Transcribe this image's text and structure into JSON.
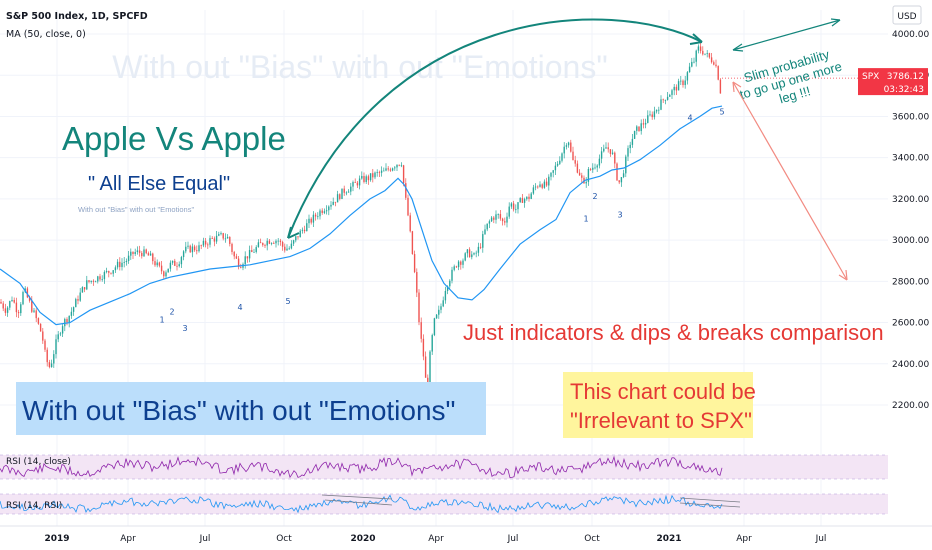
{
  "chart_data": {
    "type": "line",
    "title": "S&P 500 Index, 1D, SPCFD",
    "indicator": "MA (50, close, 0)",
    "currency": "USD",
    "y_ticks": [
      2200,
      2400,
      2600,
      2800,
      3000,
      3200,
      3400,
      3600,
      3800,
      4000
    ],
    "y_tick_labels": [
      "2200.00",
      "2400.00",
      "2600.00",
      "2800.00",
      "3000.00",
      "3200.00",
      "3400.00",
      "3600.00",
      "3800.00",
      "4000.00"
    ],
    "ylim": [
      2100,
      4140
    ],
    "x_ticks": [
      {
        "label": "2019",
        "bold": true
      },
      {
        "label": "Apr",
        "bold": false
      },
      {
        "label": "Jul",
        "bold": false
      },
      {
        "label": "Oct",
        "bold": false
      },
      {
        "label": "2020",
        "bold": true
      },
      {
        "label": "Apr",
        "bold": false
      },
      {
        "label": "Jul",
        "bold": false
      },
      {
        "label": "Oct",
        "bold": false
      },
      {
        "label": "2021",
        "bold": true
      },
      {
        "label": "Apr",
        "bold": false
      },
      {
        "label": "Jul",
        "bold": false
      }
    ],
    "price_path": [
      [
        0,
        2700
      ],
      [
        6,
        2660
      ],
      [
        12,
        2720
      ],
      [
        18,
        2650
      ],
      [
        24,
        2760
      ],
      [
        30,
        2690
      ],
      [
        36,
        2620
      ],
      [
        42,
        2540
      ],
      [
        46,
        2420
      ],
      [
        50,
        2380
      ],
      [
        56,
        2500
      ],
      [
        62,
        2590
      ],
      [
        70,
        2640
      ],
      [
        78,
        2720
      ],
      [
        86,
        2790
      ],
      [
        94,
        2810
      ],
      [
        102,
        2830
      ],
      [
        110,
        2850
      ],
      [
        118,
        2880
      ],
      [
        126,
        2900
      ],
      [
        134,
        2940
      ],
      [
        142,
        2940
      ],
      [
        150,
        2920
      ],
      [
        158,
        2870
      ],
      [
        164,
        2840
      ],
      [
        170,
        2880
      ],
      [
        178,
        2890
      ],
      [
        184,
        2950
      ],
      [
        192,
        2960
      ],
      [
        198,
        2960
      ],
      [
        204,
        2980
      ],
      [
        210,
        3000
      ],
      [
        216,
        3010
      ],
      [
        222,
        3020
      ],
      [
        228,
        3010
      ],
      [
        234,
        2920
      ],
      [
        240,
        2880
      ],
      [
        246,
        2920
      ],
      [
        252,
        2940
      ],
      [
        258,
        2970
      ],
      [
        264,
        2990
      ],
      [
        270,
        3000
      ],
      [
        278,
        3000
      ],
      [
        284,
        2960
      ],
      [
        290,
        2960
      ],
      [
        296,
        3010
      ],
      [
        304,
        3060
      ],
      [
        312,
        3100
      ],
      [
        320,
        3140
      ],
      [
        328,
        3170
      ],
      [
        336,
        3200
      ],
      [
        344,
        3240
      ],
      [
        352,
        3260
      ],
      [
        360,
        3290
      ],
      [
        368,
        3300
      ],
      [
        376,
        3320
      ],
      [
        384,
        3330
      ],
      [
        390,
        3350
      ],
      [
        396,
        3370
      ],
      [
        402,
        3380
      ],
      [
        404,
        3250
      ],
      [
        408,
        3120
      ],
      [
        412,
        2950
      ],
      [
        416,
        2780
      ],
      [
        420,
        2550
      ],
      [
        424,
        2420
      ],
      [
        427,
        2240
      ],
      [
        430,
        2440
      ],
      [
        434,
        2600
      ],
      [
        440,
        2660
      ],
      [
        446,
        2780
      ],
      [
        452,
        2840
      ],
      [
        458,
        2900
      ],
      [
        462,
        2900
      ],
      [
        468,
        2940
      ],
      [
        474,
        2920
      ],
      [
        480,
        2970
      ],
      [
        486,
        3060
      ],
      [
        492,
        3110
      ],
      [
        498,
        3120
      ],
      [
        504,
        3080
      ],
      [
        510,
        3180
      ],
      [
        516,
        3150
      ],
      [
        522,
        3200
      ],
      [
        528,
        3200
      ],
      [
        534,
        3250
      ],
      [
        540,
        3280
      ],
      [
        546,
        3260
      ],
      [
        552,
        3320
      ],
      [
        558,
        3380
      ],
      [
        564,
        3450
      ],
      [
        568,
        3500
      ],
      [
        572,
        3390
      ],
      [
        576,
        3360
      ],
      [
        580,
        3320
      ],
      [
        584,
        3260
      ],
      [
        588,
        3330
      ],
      [
        594,
        3360
      ],
      [
        600,
        3400
      ],
      [
        606,
        3450
      ],
      [
        612,
        3430
      ],
      [
        616,
        3320
      ],
      [
        620,
        3270
      ],
      [
        624,
        3350
      ],
      [
        630,
        3470
      ],
      [
        636,
        3530
      ],
      [
        642,
        3560
      ],
      [
        648,
        3590
      ],
      [
        654,
        3620
      ],
      [
        660,
        3660
      ],
      [
        666,
        3700
      ],
      [
        672,
        3720
      ],
      [
        678,
        3750
      ],
      [
        684,
        3770
      ],
      [
        690,
        3840
      ],
      [
        694,
        3870
      ],
      [
        698,
        3930
      ],
      [
        702,
        3920
      ],
      [
        706,
        3900
      ],
      [
        710,
        3880
      ],
      [
        714,
        3870
      ],
      [
        717,
        3830
      ],
      [
        720,
        3740
      ],
      [
        721,
        3700
      ],
      [
        722,
        3786
      ]
    ],
    "ma_path": [
      [
        0,
        2860
      ],
      [
        20,
        2790
      ],
      [
        40,
        2650
      ],
      [
        56,
        2590
      ],
      [
        70,
        2600
      ],
      [
        90,
        2660
      ],
      [
        110,
        2700
      ],
      [
        130,
        2740
      ],
      [
        150,
        2790
      ],
      [
        170,
        2820
      ],
      [
        190,
        2840
      ],
      [
        210,
        2860
      ],
      [
        230,
        2870
      ],
      [
        250,
        2880
      ],
      [
        270,
        2900
      ],
      [
        290,
        2920
      ],
      [
        310,
        2960
      ],
      [
        330,
        3030
      ],
      [
        350,
        3120
      ],
      [
        370,
        3200
      ],
      [
        385,
        3240
      ],
      [
        398,
        3300
      ],
      [
        404,
        3270
      ],
      [
        412,
        3200
      ],
      [
        422,
        3050
      ],
      [
        432,
        2900
      ],
      [
        444,
        2790
      ],
      [
        458,
        2720
      ],
      [
        472,
        2710
      ],
      [
        484,
        2760
      ],
      [
        500,
        2860
      ],
      [
        520,
        2980
      ],
      [
        540,
        3050
      ],
      [
        556,
        3100
      ],
      [
        570,
        3230
      ],
      [
        585,
        3290
      ],
      [
        600,
        3310
      ],
      [
        612,
        3340
      ],
      [
        624,
        3350
      ],
      [
        640,
        3390
      ],
      [
        660,
        3460
      ],
      [
        680,
        3540
      ],
      [
        700,
        3600
      ],
      [
        712,
        3640
      ],
      [
        722,
        3650
      ]
    ],
    "current_price": {
      "symbol": "SPX",
      "value": "3786.12",
      "countdown": "03:32:43",
      "y": 3786
    },
    "rsi_panels": [
      {
        "label": "RSI (14, close)",
        "color": "#8e24aa"
      },
      {
        "label": "RSI (14, RSI)",
        "color": "#2196f3"
      }
    ],
    "wave_counts": [
      {
        "label": "1",
        "x": 162,
        "y": 2600
      },
      {
        "label": "2",
        "x": 172,
        "y": 2640
      },
      {
        "label": "3",
        "x": 185,
        "y": 2560
      },
      {
        "label": "4",
        "x": 240,
        "y": 2660
      },
      {
        "label": "5",
        "x": 288,
        "y": 2690
      },
      {
        "label": "1",
        "x": 586,
        "y": 3090
      },
      {
        "label": "2",
        "x": 595,
        "y": 3200
      },
      {
        "label": "3",
        "x": 620,
        "y": 3110
      },
      {
        "label": "4",
        "x": 690,
        "y": 3580
      },
      {
        "label": "5",
        "x": 722,
        "y": 3610
      }
    ],
    "annotations": {
      "watermark": "With out \"Bias\" with out \"Emotions\"",
      "heading": "Apple Vs Apple",
      "subheading": "\" All Else Equal\"",
      "small_note": "With out \"Bias\" with out \"Emotions\"",
      "slim_line1": "Slim probability",
      "slim_line2": "to go up one more",
      "slim_line3": "leg !!!",
      "indicators_note": "Just indicators & dips & breaks comparison",
      "bias_box": "With out \"Bias\" with out \"Emotions\"",
      "irrelevant_line1": "This chart could be",
      "irrelevant_line2": "\"Irrelevant to SPX\""
    },
    "colors": {
      "candle_up": "#26a69a",
      "candle_down": "#ef5350",
      "ma": "#2196f3",
      "teal_text": "#13857b",
      "navy_text": "#0d3f8f",
      "red_text": "#e53935",
      "red_arrow": "#f28b82",
      "bias_box_bg": "#bbdefb",
      "irrelevant_box_bg": "#fff59d",
      "price_tag": "#f23645",
      "rsi_band": "#f3e5f5"
    }
  }
}
